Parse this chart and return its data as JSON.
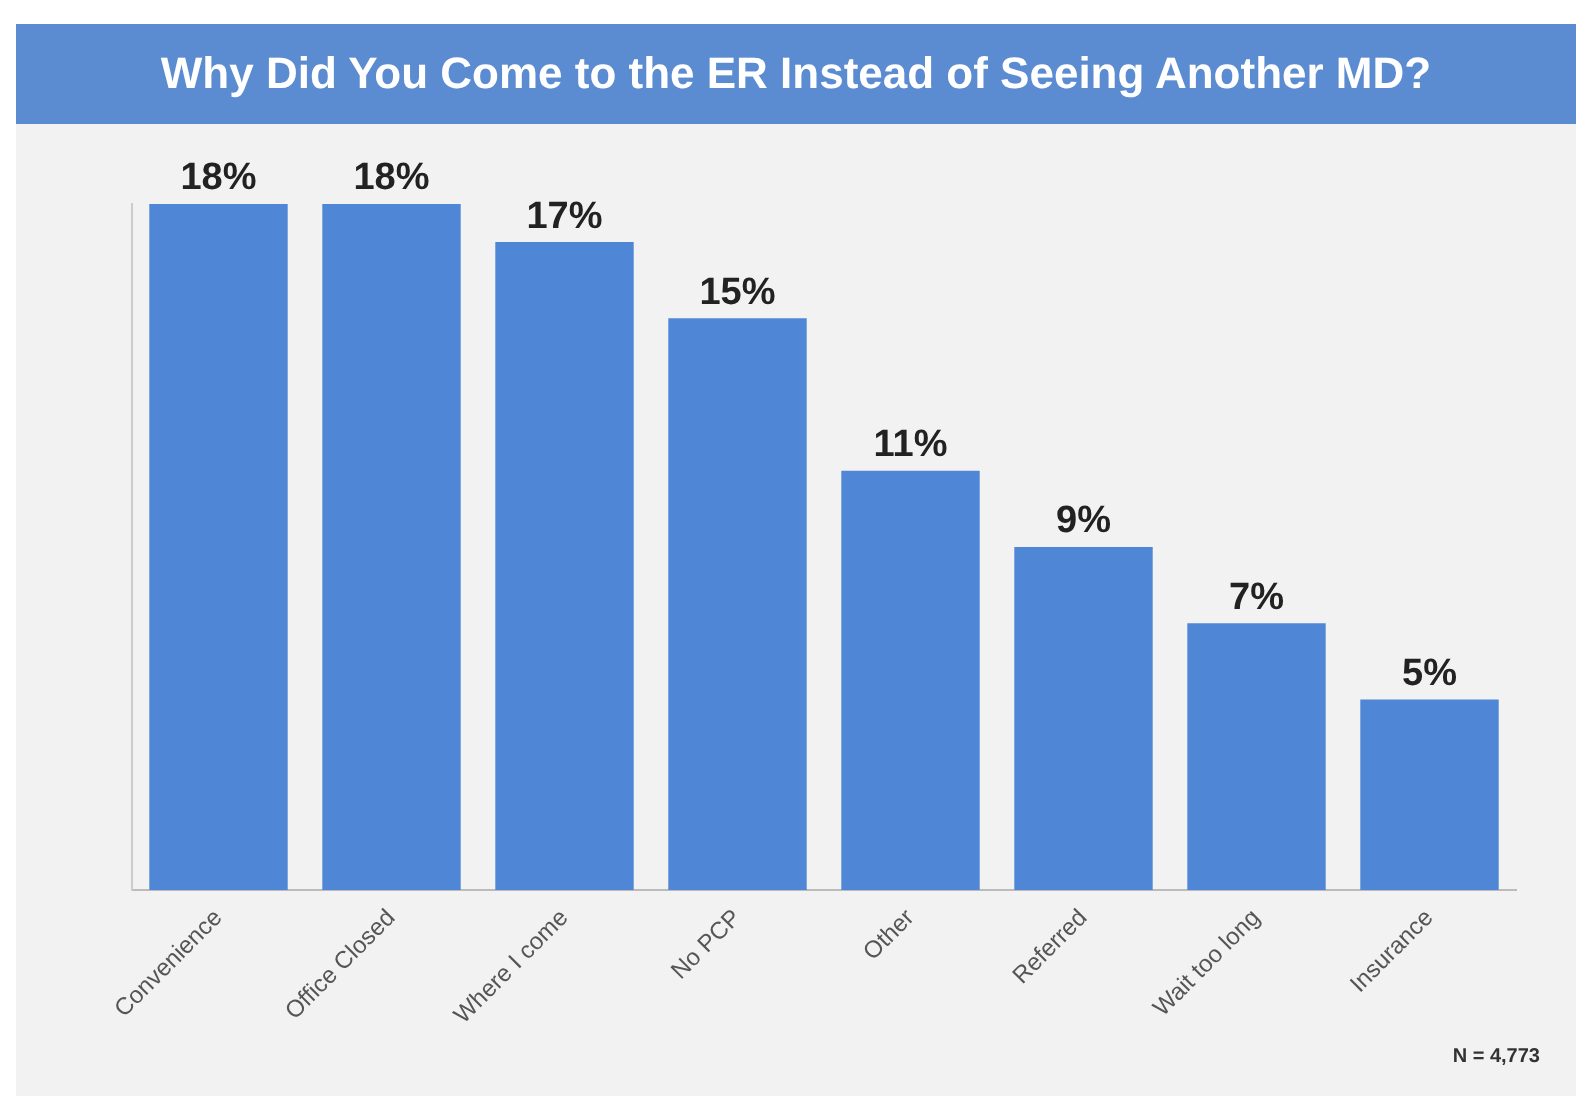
{
  "chart_data": {
    "type": "bar",
    "title": "Why Did You Come to the ER Instead of Seeing Another MD?",
    "categories": [
      "Convenience",
      "Office Closed",
      "Where I come",
      "No PCP",
      "Other",
      "Referred",
      "Wait too long",
      "Insurance"
    ],
    "values": [
      18,
      18,
      17,
      15,
      11,
      9,
      7,
      5
    ],
    "color": "#4f86d6",
    "data_labels": true,
    "value_labels": [
      "18%",
      "18%",
      "17%",
      "15%",
      "11%",
      "9%",
      "7%",
      "5%"
    ],
    "grid": false,
    "legend": false,
    "tick_labels": "x",
    "annotations": [
      "N = 4,773"
    ]
  }
}
